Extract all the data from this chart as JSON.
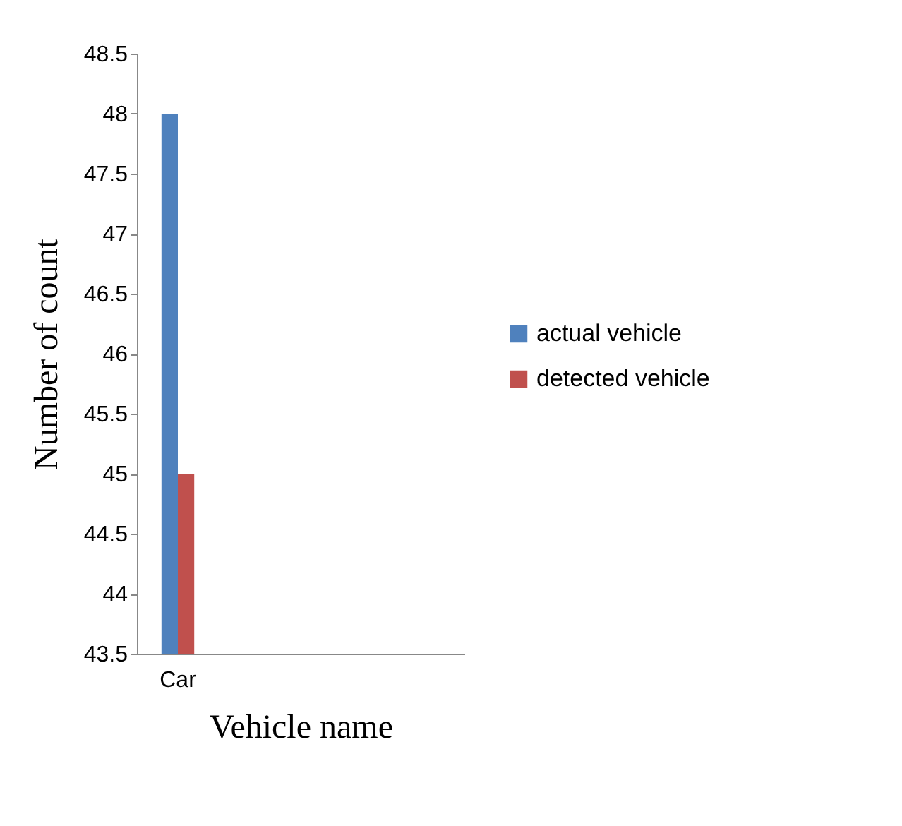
{
  "chart_data": {
    "type": "bar",
    "xlabel": "Vehicle name",
    "ylabel": "Number of count",
    "categories": [
      "Car",
      null,
      null,
      null
    ],
    "series": [
      {
        "name": "actual vehicle",
        "color": "#4f81bd",
        "values": [
          48,
          null,
          null,
          null
        ]
      },
      {
        "name": "detected vehicle",
        "color": "#c0504d",
        "values": [
          45,
          null,
          null,
          null
        ]
      }
    ],
    "ylim": [
      43.5,
      48.5
    ],
    "yticks": [
      43.5,
      44,
      44.5,
      45,
      45.5,
      46,
      46.5,
      47,
      47.5,
      48,
      48.5
    ],
    "grid": false,
    "legend": "right"
  }
}
